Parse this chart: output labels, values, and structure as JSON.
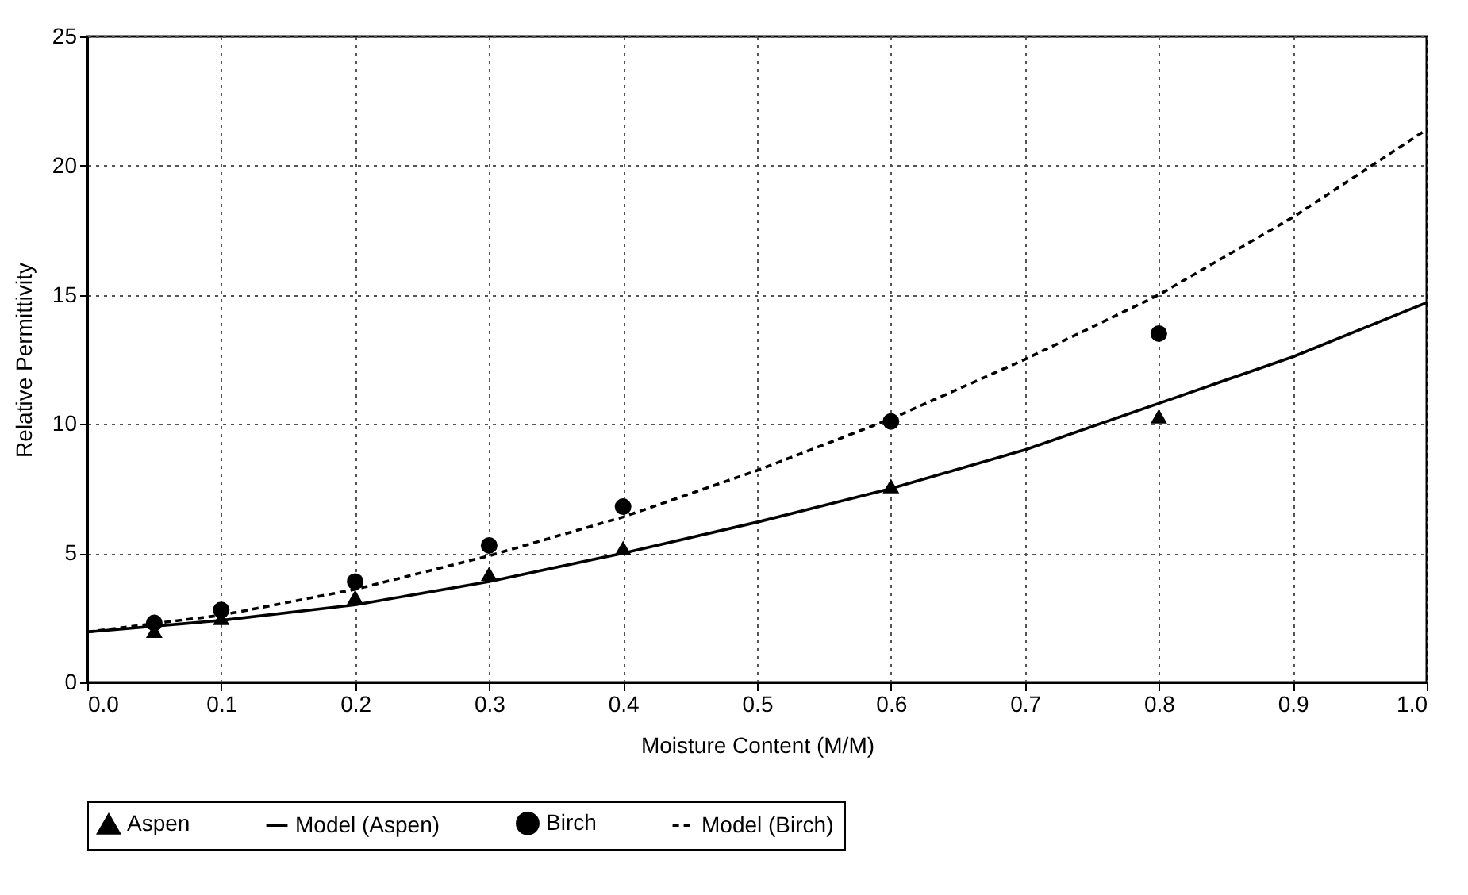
{
  "chart_data": {
    "type": "line",
    "xlabel": "Moisture Content (M/M)",
    "ylabel": "Relative Permittivity",
    "xlim": [
      0,
      1
    ],
    "xticks": [
      {
        "value": 0,
        "label": "0.0"
      },
      0.1,
      0.2,
      0.3,
      0.4,
      0.5,
      0.6,
      0.7,
      0.8,
      0.9,
      {
        "value": 1,
        "label": "1.0"
      }
    ],
    "ylim": [
      0,
      25
    ],
    "yticks": [
      0,
      5,
      10,
      15,
      20,
      25
    ],
    "grid": true,
    "legend": "bottom",
    "series": [
      {
        "name": "Aspen",
        "type": "scatter",
        "marker": "triangle",
        "color": "#000000",
        "x": [
          0.05,
          0.1,
          0.2,
          0.3,
          0.4,
          0.6,
          0.8
        ],
        "values": [
          2.0,
          2.5,
          3.3,
          4.2,
          5.2,
          7.6,
          10.3
        ]
      },
      {
        "name": "Model (Aspen)",
        "marker": "none",
        "line_style": "solid",
        "color": "#000000",
        "x": [
          0,
          0.1,
          0.2,
          0.3,
          0.4,
          0.5,
          0.6,
          0.7,
          0.8,
          0.9,
          1.0
        ],
        "values": [
          1.95,
          2.4,
          3.0,
          3.9,
          5.0,
          6.2,
          7.5,
          9.0,
          10.8,
          12.6,
          14.7
        ]
      },
      {
        "name": "Birch",
        "type": "scatter",
        "marker": "circle",
        "color": "#000000",
        "x": [
          0.05,
          0.1,
          0.2,
          0.3,
          0.4,
          0.6,
          0.8
        ],
        "values": [
          2.3,
          2.8,
          3.9,
          5.3,
          6.8,
          10.1,
          13.5
        ]
      },
      {
        "name": "Model (Birch)",
        "marker": "none",
        "line_style": "dashed",
        "color": "#000000",
        "x": [
          0,
          0.1,
          0.2,
          0.3,
          0.4,
          0.5,
          0.6,
          0.7,
          0.8,
          0.9,
          1.0
        ],
        "values": [
          1.95,
          2.6,
          3.6,
          4.9,
          6.4,
          8.2,
          10.2,
          12.5,
          15.0,
          18.0,
          21.4
        ]
      }
    ]
  }
}
